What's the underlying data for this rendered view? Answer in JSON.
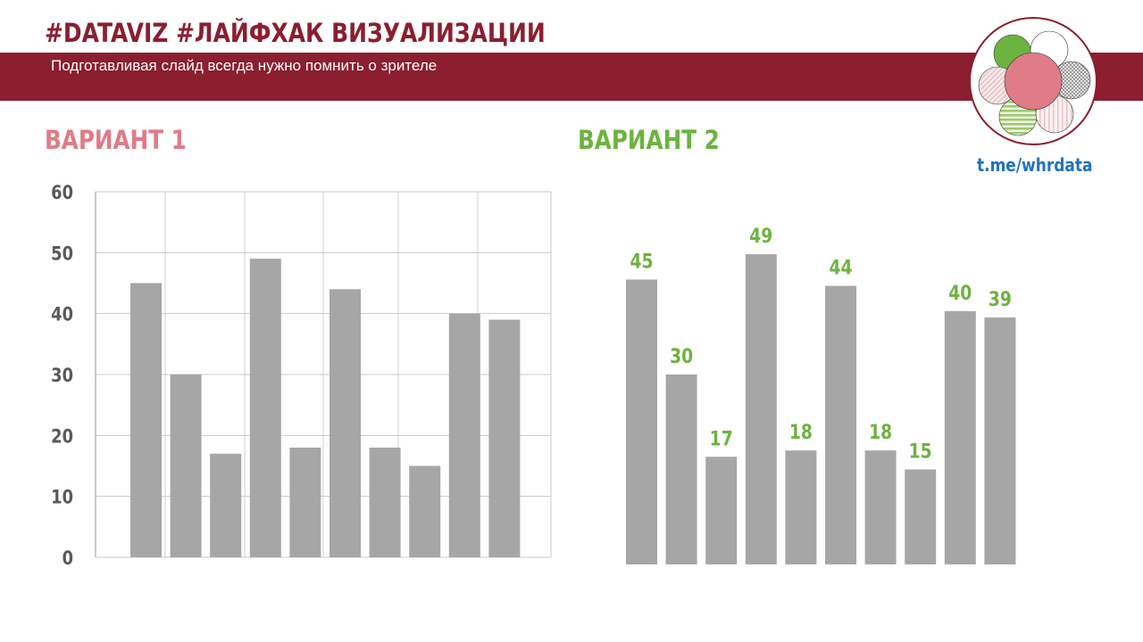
{
  "header": {
    "title": "#DATAVIZ #ЛАЙФХАК ВИЗУАЛИЗАЦИИ",
    "subtitle": "Подготавливая слайд всегда нужно помнить о зрителе",
    "link": "t.me/whrdata"
  },
  "colors": {
    "brand": "#8b1e2f",
    "variant1": "#e07b88",
    "variant2": "#6db33f",
    "bar": "#a6a6a6",
    "link": "#1f74b8",
    "axis_text": "#595959"
  },
  "chart_data": [
    {
      "title": "ВАРИАНТ 1",
      "type": "bar",
      "values": [
        45,
        30,
        17,
        49,
        18,
        44,
        18,
        15,
        40,
        39
      ],
      "ylim": [
        0,
        60
      ],
      "yticks": [
        0,
        10,
        20,
        30,
        40,
        50,
        60
      ],
      "grid": true,
      "data_labels": false
    },
    {
      "title": "ВАРИАНТ 2",
      "type": "bar",
      "values": [
        45,
        30,
        17,
        49,
        18,
        44,
        18,
        15,
        40,
        39
      ],
      "ylim": [
        0,
        60
      ],
      "grid": false,
      "axes": false,
      "data_labels": true
    }
  ]
}
